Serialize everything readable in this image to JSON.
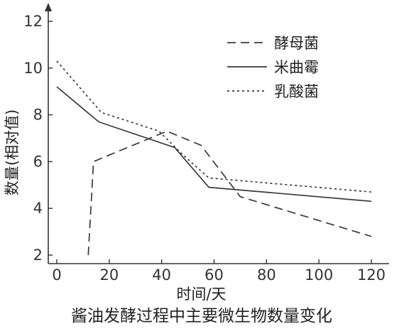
{
  "chart_data": {
    "type": "line",
    "title": "酱油发酵过程中主要微生物数量变化",
    "xlabel": "时间/天",
    "ylabel": "数量(相对值)",
    "xlim": [
      0,
      120
    ],
    "ylim": [
      2,
      12
    ],
    "xticks": [
      0,
      20,
      40,
      60,
      80,
      100,
      120
    ],
    "yticks": [
      2,
      4,
      6,
      8,
      10,
      12
    ],
    "legend_position": "top-right",
    "series": [
      {
        "name": "酵母菌",
        "style": "dashed",
        "x": [
          12,
          14,
          42,
          55,
          70,
          120
        ],
        "y": [
          2,
          6,
          7.3,
          6.7,
          4.5,
          2.8
        ]
      },
      {
        "name": "米曲霉",
        "style": "solid",
        "x": [
          0,
          16,
          45,
          58,
          120
        ],
        "y": [
          9.2,
          7.7,
          6.6,
          4.9,
          4.3
        ]
      },
      {
        "name": "乳酸菌",
        "style": "dotted",
        "x": [
          0,
          17,
          39,
          48,
          58,
          120
        ],
        "y": [
          10.3,
          8.1,
          7.3,
          6.3,
          5.3,
          4.7
        ]
      }
    ]
  }
}
